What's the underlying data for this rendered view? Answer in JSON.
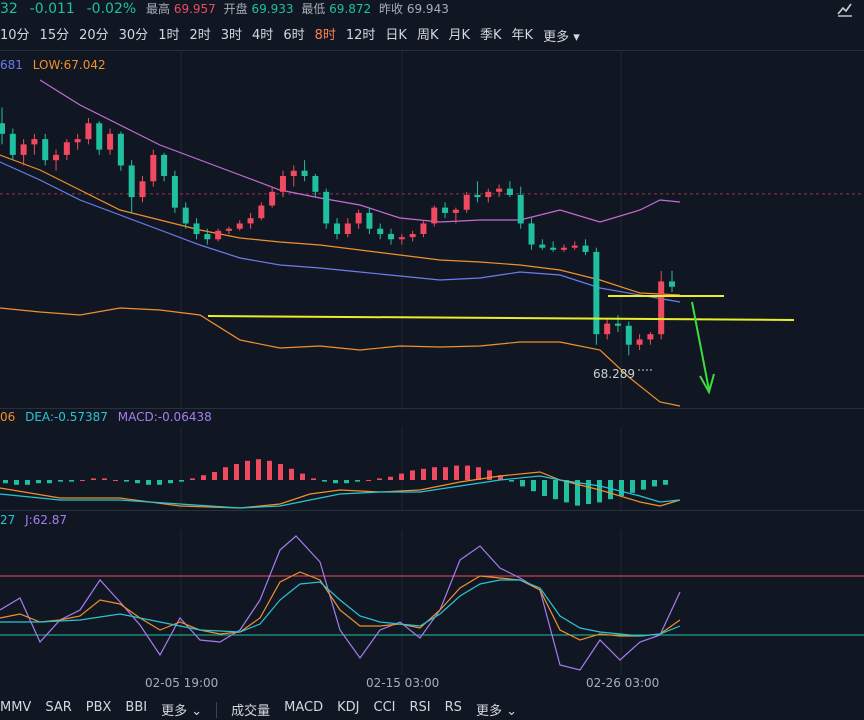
{
  "quote": {
    "price_partial": "32",
    "change": "-0.011",
    "change_pct": "-0.02%",
    "high_label": "最高",
    "high": "69.957",
    "open_label": "开盘",
    "open": "69.933",
    "low_label": "最低",
    "low": "69.872",
    "prev_label": "昨收",
    "prev": "69.943"
  },
  "timeframes": [
    "10分",
    "15分",
    "20分",
    "30分",
    "1时",
    "2时",
    "3时",
    "4时",
    "6时",
    "8时",
    "12时",
    "日K",
    "周K",
    "月K",
    "季K",
    "年K"
  ],
  "active_timeframe": "8时",
  "more_label": "更多",
  "main_legend": {
    "partial": "681",
    "low": "LOW:67.042"
  },
  "macd_legend": {
    "partial": "06",
    "dea": "DEA:-0.57387",
    "macd": "MACD:-0.06438"
  },
  "kdj_legend": {
    "partial": "27",
    "j": "J:62.87"
  },
  "low_marker": "68.289",
  "x_ticks": [
    "02-05 19:00",
    "02-15 03:00",
    "02-26 03:00"
  ],
  "indicators_left": [
    "MMV",
    "SAR",
    "PBX",
    "BBI"
  ],
  "indicators_right": [
    "成交量",
    "MACD",
    "KDJ",
    "CCI",
    "RSI",
    "RS"
  ],
  "colors": {
    "up": "#ef4a5f",
    "down": "#1fc0a0",
    "mid": "#6b7cf0",
    "upper": "#c86bd8",
    "ma": "#f0902c",
    "annot": "#e8ee2a",
    "arrow": "#3ddc3d",
    "k": "#f0902c",
    "d": "#29c4d4",
    "j": "#a67cf0"
  },
  "icons": {
    "corner": "chart-type-icon",
    "more": "chevron-down-icon"
  },
  "chart_data": {
    "type": "candlestick",
    "x_labels": [
      "02-05 19:00",
      "02-15 03:00",
      "02-26 03:00"
    ],
    "ohlc": [
      [
        70.6,
        70.75,
        70.4,
        70.5
      ],
      [
        70.5,
        70.55,
        70.25,
        70.3
      ],
      [
        70.3,
        70.45,
        70.2,
        70.4
      ],
      [
        70.4,
        70.5,
        70.3,
        70.45
      ],
      [
        70.45,
        70.5,
        70.2,
        70.25
      ],
      [
        70.25,
        70.35,
        70.15,
        70.3
      ],
      [
        70.3,
        70.45,
        70.25,
        70.42
      ],
      [
        70.42,
        70.5,
        70.35,
        70.45
      ],
      [
        70.45,
        70.65,
        70.4,
        70.6
      ],
      [
        70.6,
        70.62,
        70.3,
        70.35
      ],
      [
        70.35,
        70.55,
        70.3,
        70.5
      ],
      [
        70.5,
        70.52,
        70.15,
        70.2
      ],
      [
        70.2,
        70.25,
        69.75,
        69.9
      ],
      [
        69.9,
        70.1,
        69.85,
        70.05
      ],
      [
        70.05,
        70.35,
        70.0,
        70.3
      ],
      [
        70.3,
        70.32,
        70.05,
        70.1
      ],
      [
        70.1,
        70.15,
        69.75,
        69.8
      ],
      [
        69.8,
        69.85,
        69.6,
        69.65
      ],
      [
        69.65,
        69.7,
        69.5,
        69.55
      ],
      [
        69.55,
        69.6,
        69.45,
        69.5
      ],
      [
        69.5,
        69.6,
        69.48,
        69.58
      ],
      [
        69.58,
        69.62,
        69.55,
        69.6
      ],
      [
        69.6,
        69.68,
        69.58,
        69.65
      ],
      [
        69.65,
        69.75,
        69.6,
        69.7
      ],
      [
        69.7,
        69.85,
        69.68,
        69.82
      ],
      [
        69.82,
        70.0,
        69.8,
        69.95
      ],
      [
        69.95,
        70.15,
        69.9,
        70.1
      ],
      [
        70.1,
        70.2,
        70.0,
        70.15
      ],
      [
        70.15,
        70.25,
        70.05,
        70.1
      ],
      [
        70.1,
        70.12,
        69.9,
        69.95
      ],
      [
        69.95,
        69.98,
        69.6,
        69.65
      ],
      [
        69.65,
        69.7,
        69.5,
        69.55
      ],
      [
        69.55,
        69.7,
        69.52,
        69.65
      ],
      [
        69.65,
        69.78,
        69.6,
        69.75
      ],
      [
        69.75,
        69.8,
        69.55,
        69.6
      ],
      [
        69.6,
        69.65,
        69.5,
        69.55
      ],
      [
        69.55,
        69.6,
        69.45,
        69.5
      ],
      [
        69.5,
        69.55,
        69.45,
        69.52
      ],
      [
        69.52,
        69.58,
        69.48,
        69.55
      ],
      [
        69.55,
        69.68,
        69.52,
        69.65
      ],
      [
        69.65,
        69.82,
        69.62,
        69.8
      ],
      [
        69.8,
        69.85,
        69.7,
        69.75
      ],
      [
        69.75,
        69.8,
        69.65,
        69.78
      ],
      [
        69.78,
        69.95,
        69.75,
        69.92
      ],
      [
        69.92,
        70.05,
        69.85,
        69.9
      ],
      [
        69.9,
        69.98,
        69.85,
        69.95
      ],
      [
        69.95,
        70.02,
        69.9,
        69.98
      ],
      [
        69.98,
        70.05,
        69.9,
        69.92
      ],
      [
        69.92,
        70.0,
        69.6,
        69.65
      ],
      [
        69.65,
        69.7,
        69.4,
        69.45
      ],
      [
        69.45,
        69.5,
        69.4,
        69.42
      ],
      [
        69.42,
        69.48,
        69.38,
        69.4
      ],
      [
        69.4,
        69.45,
        69.38,
        69.42
      ],
      [
        69.42,
        69.48,
        69.4,
        69.44
      ],
      [
        69.44,
        69.5,
        69.35,
        69.38
      ],
      [
        69.38,
        69.42,
        68.5,
        68.6
      ],
      [
        68.6,
        68.75,
        68.55,
        68.7
      ],
      [
        68.7,
        68.78,
        68.62,
        68.68
      ],
      [
        68.68,
        68.72,
        68.4,
        68.5
      ],
      [
        68.5,
        68.6,
        68.45,
        68.55
      ],
      [
        68.55,
        68.62,
        68.5,
        68.6
      ],
      [
        68.6,
        69.2,
        68.55,
        69.1
      ],
      [
        69.1,
        69.2,
        69.0,
        69.05
      ]
    ],
    "low_annotation": 68.289,
    "macd": {
      "dea": -0.57387,
      "macd": -0.06438
    },
    "kdj": {
      "j": 62.87
    }
  }
}
